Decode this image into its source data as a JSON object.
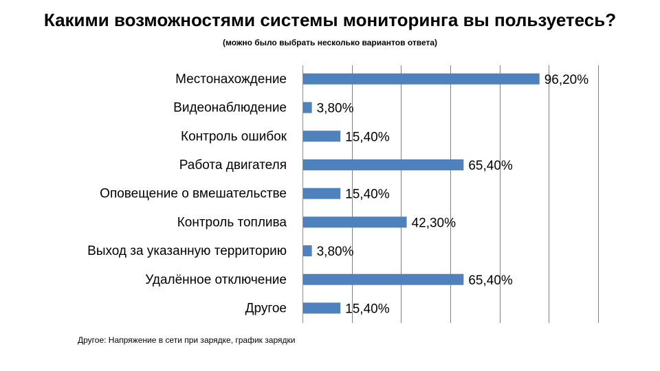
{
  "chart_data": {
    "type": "bar",
    "orientation": "horizontal",
    "title": "Какими возможностями системы мониторинга вы пользуетесь?",
    "subtitle": "(можно было выбрать несколько вариантов ответа)",
    "categories": [
      "Местонахождение",
      "Видеонаблюдение",
      "Контроль ошибок",
      "Работа двигателя",
      "Оповещение о вмешательстве",
      "Контроль топлива",
      "Выход за указанную территорию",
      "Удалённое отключение",
      "Другое"
    ],
    "values": [
      96.2,
      3.8,
      15.4,
      65.4,
      15.4,
      42.3,
      3.8,
      65.4,
      15.4
    ],
    "data_labels": [
      "96,20%",
      "3,80%",
      "15,40%",
      "65,40%",
      "15,40%",
      "42,30%",
      "3,80%",
      "65,40%",
      "15,40%"
    ],
    "xlim": [
      0,
      120
    ],
    "grid": true,
    "legend": "none",
    "bar_color": "#4f81bd",
    "footnote": "Другое:  Напряжение в сети при зарядке, график зарядки"
  }
}
